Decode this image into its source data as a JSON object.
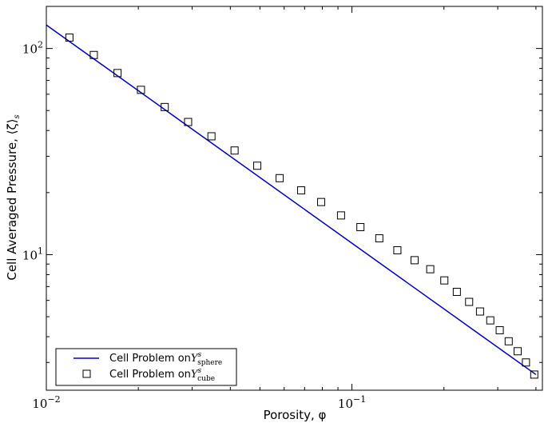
{
  "chart_data": {
    "type": "line",
    "title": "",
    "xlabel": "Porosity, φ",
    "ylabel": "Cell Averaged Pressure, ⟨ζ⟩",
    "ylabel_subscript": "s",
    "xscale": "log",
    "yscale": "log",
    "xlim": [
      0.01,
      0.42
    ],
    "ylim": [
      2.2,
      160
    ],
    "x_ticks": [
      {
        "value": 0.01,
        "base": "10",
        "exp": "−2"
      },
      {
        "value": 0.1,
        "base": "10",
        "exp": "−1"
      }
    ],
    "y_ticks": [
      {
        "value": 10,
        "base": "10",
        "exp": "1"
      },
      {
        "value": 100,
        "base": "10",
        "exp": "2"
      }
    ],
    "grid": false,
    "legend_position": "bottom-left",
    "series": [
      {
        "legend_prefix": "Cell Problem on",
        "legend_symbol": "Y",
        "legend_sup": "s",
        "legend_sub": "sphere",
        "style": "line",
        "color": "#0000cc",
        "x": [
          0.01,
          0.4
        ],
        "y": [
          130,
          2.62
        ]
      },
      {
        "legend_prefix": "Cell Problem on",
        "legend_symbol": "Y",
        "legend_sup": "s",
        "legend_sub": "cube",
        "style": "square-marker",
        "color": "#000000",
        "x": [
          0.0119,
          0.0143,
          0.0171,
          0.0204,
          0.0244,
          0.0291,
          0.0347,
          0.0413,
          0.049,
          0.058,
          0.0682,
          0.0793,
          0.0921,
          0.1066,
          0.1229,
          0.1408,
          0.1603,
          0.1804,
          0.2006,
          0.2204,
          0.2418,
          0.2625,
          0.2836,
          0.3045,
          0.3258,
          0.3485,
          0.371,
          0.395
        ],
        "y": [
          113,
          93,
          76,
          63,
          52,
          44,
          37.5,
          32,
          27,
          23.5,
          20.5,
          18,
          15.5,
          13.6,
          12,
          10.5,
          9.4,
          8.5,
          7.5,
          6.6,
          5.9,
          5.3,
          4.8,
          4.3,
          3.8,
          3.4,
          3.0,
          2.62
        ]
      }
    ]
  }
}
